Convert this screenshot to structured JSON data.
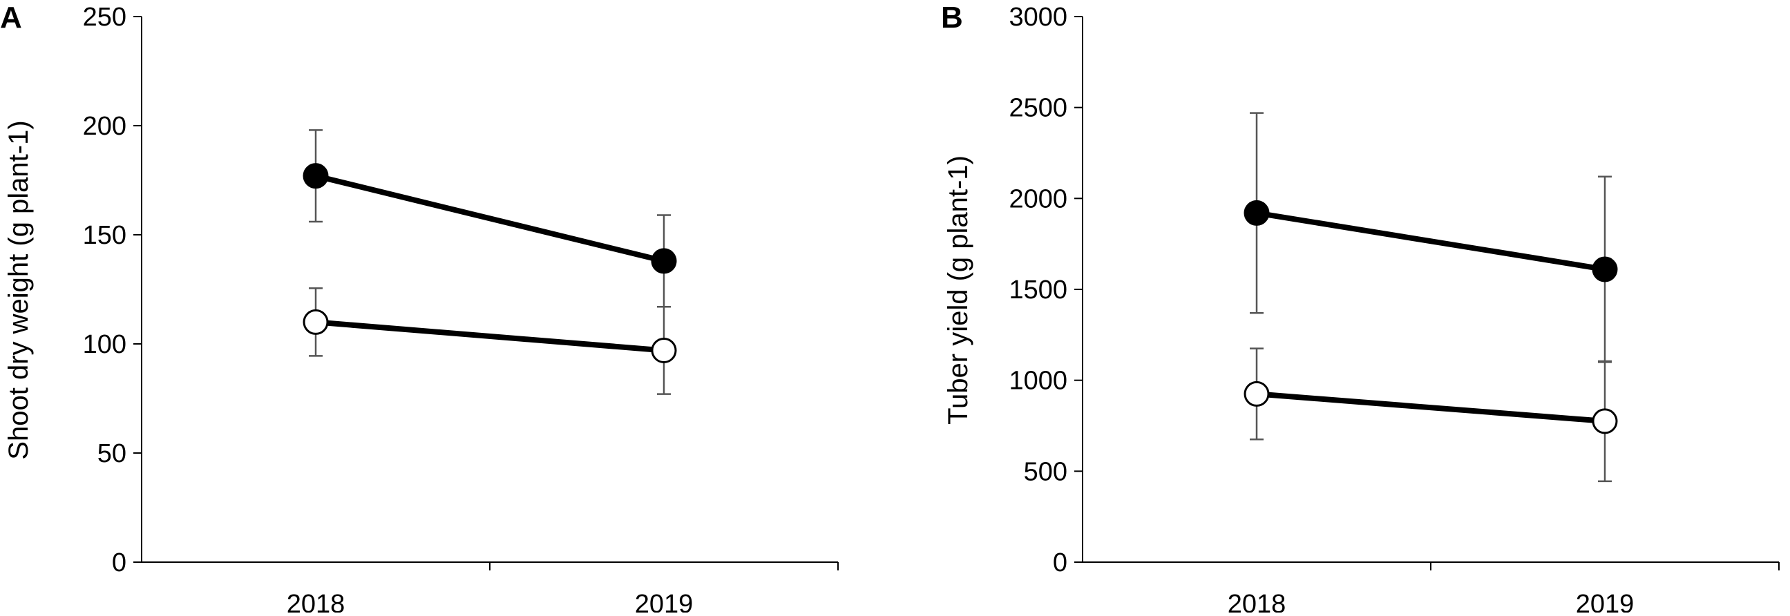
{
  "colors": {
    "axis": "#000000",
    "line": "#000000",
    "errorbar": "#555555",
    "filled": "#000000",
    "open": "#ffffff"
  },
  "chart_data": [
    {
      "panel_label": "A",
      "type": "line",
      "categories": [
        "2018",
        "2019"
      ],
      "title": "",
      "xlabel": "",
      "ylabel": "Shoot dry weight (g plant-1)",
      "ylim": [
        0,
        250
      ],
      "yticks": [
        0,
        50,
        100,
        150,
        200,
        250
      ],
      "grid": false,
      "series": [
        {
          "marker": "filled-circle",
          "values": [
            177,
            138
          ],
          "error": [
            21,
            21
          ]
        },
        {
          "marker": "open-circle",
          "values": [
            110,
            97
          ],
          "error": [
            15.5,
            20
          ]
        }
      ]
    },
    {
      "panel_label": "B",
      "type": "line",
      "categories": [
        "2018",
        "2019"
      ],
      "title": "",
      "xlabel": "",
      "ylabel": "Tuber yield (g plant-1)",
      "ylim": [
        0,
        3000
      ],
      "yticks": [
        0,
        500,
        1000,
        1500,
        2000,
        2500,
        3000
      ],
      "grid": false,
      "series": [
        {
          "marker": "filled-circle",
          "values": [
            1920,
            1610
          ],
          "error": [
            550,
            510
          ]
        },
        {
          "marker": "open-circle",
          "values": [
            925,
            775
          ],
          "error": [
            250,
            330
          ]
        }
      ]
    }
  ]
}
